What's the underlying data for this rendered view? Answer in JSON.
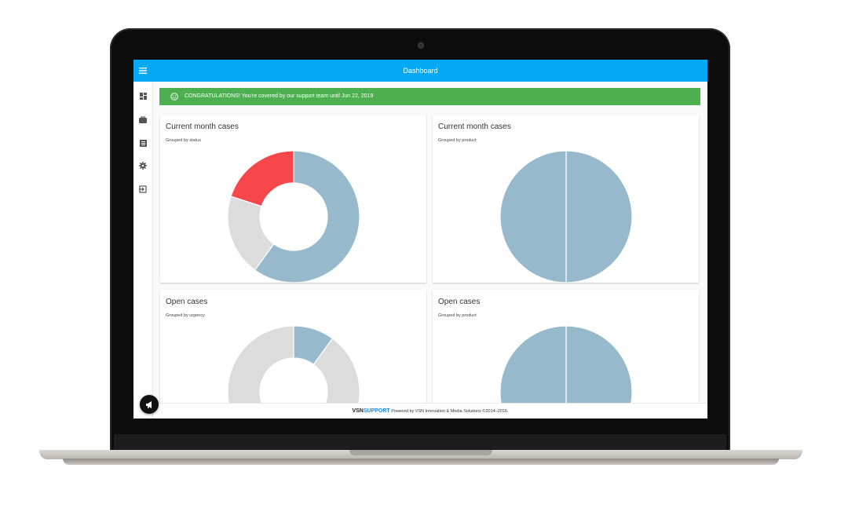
{
  "header": {
    "title": "Dashboard",
    "menu_icon": "menu-icon"
  },
  "sidebar": {
    "items": [
      {
        "icon": "dashboard-icon"
      },
      {
        "icon": "briefcase-icon"
      },
      {
        "icon": "list-icon"
      },
      {
        "icon": "gear-icon"
      },
      {
        "icon": "sign-out-icon"
      }
    ]
  },
  "banner": {
    "text": "CONGRATULATIONS! You're covered by our support team until Jun 22, 2019",
    "icon": "smiley-icon",
    "color": "#4caf50"
  },
  "cards": [
    {
      "title": "Current month cases",
      "subtitle": "Grouped by status"
    },
    {
      "title": "Current month cases",
      "subtitle": "Grouped by product"
    },
    {
      "title": "Open cases",
      "subtitle": "Grouped by urgency"
    },
    {
      "title": "Open cases",
      "subtitle": "Grouped by product"
    }
  ],
  "footer": {
    "logo_part1": "VSN",
    "logo_part2": "SUPPORT",
    "text": "Powered by VSN Innovation & Media Solutions ©2014–2016."
  },
  "fab": {
    "icon": "megaphone-icon"
  },
  "colors": {
    "topbar": "#03a9f4",
    "blue": "#97b9cc",
    "grey": "#dcdcdc",
    "red": "#f7474b"
  },
  "chart_data": [
    {
      "type": "pie",
      "donut": true,
      "series": [
        {
          "values": [
            0.6,
            0.2,
            0.2
          ],
          "colors": [
            "#97b9cc",
            "#dcdcdc",
            "#f7474b"
          ]
        }
      ]
    },
    {
      "type": "pie",
      "donut": false,
      "series": [
        {
          "values": [
            0.5,
            0.5
          ],
          "colors": [
            "#97b9cc",
            "#97b9cc"
          ]
        }
      ]
    },
    {
      "type": "pie",
      "donut": true,
      "series": [
        {
          "values": [
            0.1,
            0.4,
            0.5
          ],
          "colors": [
            "#97b9cc",
            "#dcdcdc",
            "#dcdcdc"
          ]
        }
      ]
    },
    {
      "type": "pie",
      "donut": false,
      "series": [
        {
          "values": [
            0.5,
            0.5
          ],
          "colors": [
            "#97b9cc",
            "#97b9cc"
          ]
        }
      ]
    }
  ]
}
